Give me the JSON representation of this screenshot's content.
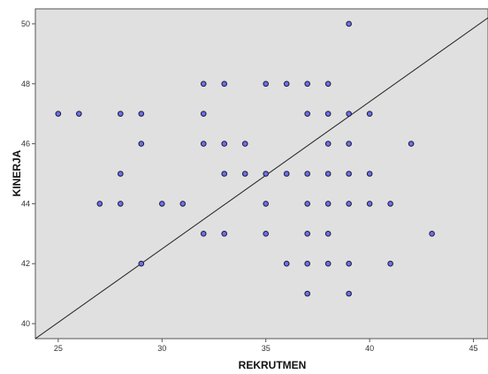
{
  "chart_data": {
    "type": "scatter",
    "xlabel": "REKRUTMEN",
    "ylabel": "KINERJA",
    "xlim": [
      23.9,
      45.7
    ],
    "ylim": [
      39.5,
      50.5
    ],
    "xticks": [
      25,
      30,
      35,
      40,
      45
    ],
    "yticks": [
      40,
      42,
      44,
      46,
      48,
      50
    ],
    "grid": false,
    "reference_line": {
      "from": [
        23.9,
        39.5
      ],
      "to": [
        45.7,
        50.2
      ]
    },
    "colors": {
      "plot_bg": "#e0e0e0",
      "marker_fill": "#6f6fe6",
      "marker_edge": "#1a1a3c",
      "line": "#222222"
    },
    "points": [
      [
        25,
        47
      ],
      [
        26,
        47
      ],
      [
        28,
        47
      ],
      [
        29,
        47
      ],
      [
        29,
        46
      ],
      [
        28,
        45
      ],
      [
        27,
        44
      ],
      [
        28,
        44
      ],
      [
        30,
        44
      ],
      [
        31,
        44
      ],
      [
        29,
        42
      ],
      [
        32,
        48
      ],
      [
        33,
        48
      ],
      [
        35,
        48
      ],
      [
        36,
        48
      ],
      [
        37,
        48
      ],
      [
        38,
        48
      ],
      [
        39,
        50
      ],
      [
        32,
        47
      ],
      [
        37,
        47
      ],
      [
        38,
        47
      ],
      [
        39,
        47
      ],
      [
        40,
        47
      ],
      [
        32,
        46
      ],
      [
        33,
        46
      ],
      [
        34,
        46
      ],
      [
        38,
        46
      ],
      [
        39,
        46
      ],
      [
        42,
        46
      ],
      [
        33,
        45
      ],
      [
        34,
        45
      ],
      [
        35,
        45
      ],
      [
        36,
        45
      ],
      [
        37,
        45
      ],
      [
        38,
        45
      ],
      [
        39,
        45
      ],
      [
        40,
        45
      ],
      [
        35,
        44
      ],
      [
        37,
        44
      ],
      [
        38,
        44
      ],
      [
        39,
        44
      ],
      [
        40,
        44
      ],
      [
        41,
        44
      ],
      [
        32,
        43
      ],
      [
        33,
        43
      ],
      [
        35,
        43
      ],
      [
        37,
        43
      ],
      [
        38,
        43
      ],
      [
        43,
        43
      ],
      [
        36,
        42
      ],
      [
        37,
        42
      ],
      [
        38,
        42
      ],
      [
        39,
        42
      ],
      [
        41,
        42
      ],
      [
        37,
        41
      ],
      [
        39,
        41
      ]
    ]
  }
}
